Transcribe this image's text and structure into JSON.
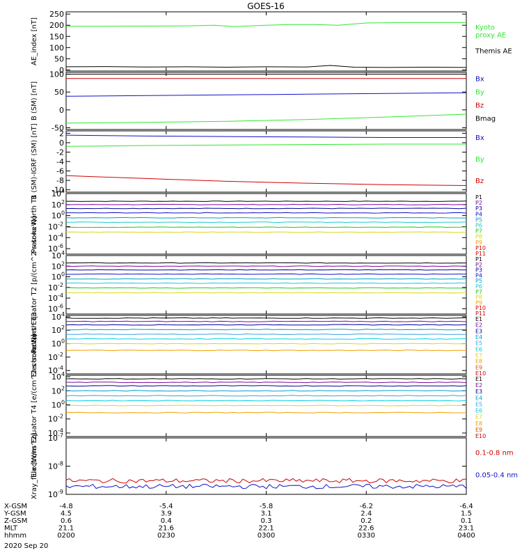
{
  "page": {
    "title": "GOES-16",
    "footer_date": "2020 Sep 20"
  },
  "colors": {
    "black": "#000000",
    "green": "#2ee82e",
    "blue": "#1010c8",
    "red": "#d00000",
    "purple": "#7a0a9a",
    "navy": "#0000a0",
    "teal": "#00a0c8",
    "cyan": "#20c8d0",
    "lime": "#20c820",
    "yellow": "#d8d820",
    "orange": "#f0a000",
    "orange_red": "#e05000",
    "magenta": "#c000c0",
    "light_blue": "#40a0e0",
    "bright_cyan": "#00d0e0"
  },
  "ephemeris": {
    "rows": [
      {
        "label": "X-GSM",
        "values": [
          "-4.8",
          "-5.4",
          "-5.8",
          "-6.2",
          "-6.4"
        ]
      },
      {
        "label": "Y-GSM",
        "values": [
          "4.5",
          "3.9",
          "3.1",
          "2.4",
          "1.5"
        ]
      },
      {
        "label": "Z-GSM",
        "values": [
          "0.6",
          "0.4",
          "0.3",
          "0.2",
          "0.1"
        ]
      },
      {
        "label": "MLT",
        "values": [
          "21.1",
          "21.6",
          "22.1",
          "22.6",
          "23.1"
        ]
      },
      {
        "label": "hhmm",
        "values": [
          "0200",
          "0230",
          "0300",
          "0330",
          "0400"
        ]
      }
    ]
  },
  "chart_data": [
    {
      "type": "line",
      "ylabel": "AE_index [nT]",
      "scale": "linear",
      "ylim": [
        -5,
        260
      ],
      "yticks": [
        0,
        50,
        100,
        150,
        200,
        250
      ],
      "ytick_labels": [
        "0",
        "50",
        "100",
        "150",
        "200",
        "250"
      ],
      "x": [
        "0200",
        "0230",
        "0300",
        "0330",
        "0400"
      ],
      "series": [
        {
          "name": "Kyoto proxy AE",
          "label_lines": [
            "Kyoto",
            "proxy AE"
          ],
          "color": "green",
          "points": [
            [
              0,
              195
            ],
            [
              0.2,
              196
            ],
            [
              0.3,
              197
            ],
            [
              0.37,
              200
            ],
            [
              0.42,
              194
            ],
            [
              0.5,
              200
            ],
            [
              0.56,
              203
            ],
            [
              0.62,
              203
            ],
            [
              0.68,
              200
            ],
            [
              0.75,
              210
            ],
            [
              0.85,
              212
            ],
            [
              1,
              212
            ]
          ]
        },
        {
          "name": "Themis AE",
          "label_lines": [
            "Themis AE"
          ],
          "color": "black",
          "points": [
            [
              0,
              14
            ],
            [
              0.1,
              15
            ],
            [
              0.2,
              13
            ],
            [
              0.3,
              14
            ],
            [
              0.4,
              12
            ],
            [
              0.5,
              14
            ],
            [
              0.6,
              13
            ],
            [
              0.66,
              20
            ],
            [
              0.72,
              12
            ],
            [
              0.8,
              11
            ],
            [
              0.9,
              12
            ],
            [
              1,
              11
            ]
          ]
        }
      ]
    },
    {
      "type": "line",
      "ylabel": "B (SM) [nT]",
      "scale": "linear",
      "ylim": [
        -55,
        105
      ],
      "yticks": [
        -50,
        0,
        50,
        100
      ],
      "ytick_labels": [
        "-50",
        "0",
        "50",
        "100"
      ],
      "x": [
        "0200",
        "0230",
        "0300",
        "0330",
        "0400"
      ],
      "series": [
        {
          "name": "Bx",
          "color": "blue",
          "points": [
            [
              0,
              38
            ],
            [
              0.2,
              40
            ],
            [
              0.4,
              42
            ],
            [
              0.6,
              44
            ],
            [
              0.8,
              46
            ],
            [
              1,
              48
            ]
          ]
        },
        {
          "name": "By",
          "color": "green",
          "points": [
            [
              0,
              -37
            ],
            [
              0.2,
              -35
            ],
            [
              0.4,
              -32
            ],
            [
              0.6,
              -27
            ],
            [
              0.8,
              -20
            ],
            [
              1,
              -12
            ]
          ]
        },
        {
          "name": "Bz",
          "color": "red",
          "points": [
            [
              0,
              88
            ],
            [
              0.5,
              88
            ],
            [
              1,
              88
            ]
          ]
        },
        {
          "name": "Bmag",
          "color": "black",
          "points": [
            [
              0,
              100
            ],
            [
              0.5,
              100
            ],
            [
              1,
              100
            ]
          ]
        }
      ]
    },
    {
      "type": "line",
      "ylabel": "B (SM)-IGRF (SM) [nT]",
      "scale": "linear",
      "ylim": [
        -10.5,
        2.5
      ],
      "yticks": [
        -10,
        -8,
        -6,
        -4,
        -2,
        0,
        2
      ],
      "ytick_labels": [
        "-10",
        "-8",
        "-6",
        "-4",
        "-2",
        "0",
        "2"
      ],
      "x": [
        "0200",
        "0230",
        "0300",
        "0330",
        "0400"
      ],
      "series": [
        {
          "name": "Bx",
          "color": "blue",
          "points": [
            [
              0,
              1.6
            ],
            [
              0.2,
              1.4
            ],
            [
              0.4,
              1.3
            ],
            [
              0.6,
              1.2
            ],
            [
              0.8,
              1.1
            ],
            [
              1,
              1.1
            ]
          ]
        },
        {
          "name": "By",
          "color": "green",
          "points": [
            [
              0,
              -0.8
            ],
            [
              0.2,
              -0.6
            ],
            [
              0.4,
              -0.5
            ],
            [
              0.6,
              -0.4
            ],
            [
              0.8,
              -0.3
            ],
            [
              1,
              -0.3
            ]
          ]
        },
        {
          "name": "Bz",
          "color": "red",
          "points": [
            [
              0,
              -7.0
            ],
            [
              0.2,
              -7.6
            ],
            [
              0.4,
              -8.2
            ],
            [
              0.6,
              -8.6
            ],
            [
              0.8,
              -8.9
            ],
            [
              1,
              -9.1
            ]
          ]
        }
      ]
    },
    {
      "type": "line",
      "ylabel": "Protons North T1",
      "scale": "log",
      "ylim": [
        -7,
        4
      ],
      "yticks": [
        -6,
        -4,
        -2,
        0,
        2,
        4
      ],
      "ytick_labels": [
        "10^-6",
        "10^-4",
        "10^-2",
        "10^0",
        "10^2",
        "10^4"
      ],
      "x": [
        "0200",
        "0230",
        "0300",
        "0330",
        "0400"
      ],
      "channels": [
        "P1",
        "P2",
        "P3",
        "P4",
        "P5",
        "P6",
        "P7",
        "P8",
        "P9",
        "P10",
        "P11"
      ],
      "channel_colors": [
        "black",
        "purple",
        "navy",
        "blue",
        "teal",
        "cyan",
        "lime",
        "yellow",
        "orange",
        "red",
        "red"
      ],
      "series": [
        {
          "name": "P1",
          "color": "black",
          "log10": 2.6
        },
        {
          "name": "P2",
          "color": "purple",
          "log10": 2.0
        },
        {
          "name": "P3",
          "color": "navy",
          "log10": 1.3
        },
        {
          "name": "P4",
          "color": "blue",
          "log10": 0.5
        },
        {
          "name": "P5",
          "color": "teal",
          "log10": -0.4
        },
        {
          "name": "P6",
          "color": "cyan",
          "log10": -1.2
        },
        {
          "name": "P7",
          "color": "lime",
          "log10": -2.1
        },
        {
          "name": "P8",
          "color": "yellow",
          "log10": -3.0
        }
      ]
    },
    {
      "type": "line",
      "ylabel": "Protons Equator T2 [p/(cm^2-s-sr-keV)]",
      "scale": "log",
      "ylim": [
        -7,
        4
      ],
      "yticks": [
        -6,
        -4,
        -2,
        0,
        2,
        4
      ],
      "ytick_labels": [
        "10^-6",
        "10^-4",
        "10^-2",
        "10^0",
        "10^2",
        "10^4"
      ],
      "x": [
        "0200",
        "0230",
        "0300",
        "0330",
        "0400"
      ],
      "channels": [
        "P1",
        "P2",
        "P3",
        "P4",
        "P5",
        "P6",
        "P7",
        "P8",
        "P9",
        "P10",
        "P11"
      ],
      "channel_colors": [
        "black",
        "purple",
        "navy",
        "blue",
        "teal",
        "cyan",
        "lime",
        "yellow",
        "orange",
        "red",
        "red"
      ],
      "series": [
        {
          "name": "P1",
          "color": "black",
          "log10": 2.6
        },
        {
          "name": "P2",
          "color": "purple",
          "log10": 2.0
        },
        {
          "name": "P3",
          "color": "navy",
          "log10": 1.3
        },
        {
          "name": "P4",
          "color": "blue",
          "log10": 0.5
        },
        {
          "name": "P5",
          "color": "teal",
          "log10": -0.4
        },
        {
          "name": "P6",
          "color": "cyan",
          "log10": -1.2
        },
        {
          "name": "P7",
          "color": "lime",
          "log10": -2.1
        },
        {
          "name": "P8",
          "color": "yellow",
          "log10": -3.0
        }
      ]
    },
    {
      "type": "line",
      "ylabel": "Electrons North T3",
      "scale": "log",
      "ylim": [
        -4.5,
        4.2
      ],
      "yticks": [
        -4,
        -2,
        0,
        2,
        4
      ],
      "ytick_labels": [
        "10^-4",
        "10^-2",
        "10^0",
        "10^2",
        "10^4"
      ],
      "x": [
        "0200",
        "0230",
        "0300",
        "0330",
        "0400"
      ],
      "channels": [
        "E1",
        "E2",
        "E3",
        "E4",
        "E5",
        "E6",
        "E7",
        "E8",
        "E9",
        "E10"
      ],
      "channel_colors": [
        "black",
        "purple",
        "navy",
        "teal",
        "light_blue",
        "bright_cyan",
        "yellow",
        "orange",
        "orange_red",
        "red"
      ],
      "series": [
        {
          "name": "E1",
          "color": "black",
          "log10": 3.8
        },
        {
          "name": "E2",
          "color": "purple",
          "log10": 3.3
        },
        {
          "name": "E3",
          "color": "navy",
          "log10": 2.8
        },
        {
          "name": "E4",
          "color": "teal",
          "log10": 2.1
        },
        {
          "name": "E5",
          "color": "light_blue",
          "log10": 1.4
        },
        {
          "name": "E6",
          "color": "bright_cyan",
          "log10": 0.7
        },
        {
          "name": "E7",
          "color": "yellow",
          "log10": 0.0
        },
        {
          "name": "E8",
          "color": "orange",
          "log10": -1.0
        }
      ]
    },
    {
      "type": "line",
      "ylabel": "Electrons Equator T4 [e/(cm^2-s-sr-keV)]",
      "scale": "log",
      "ylim": [
        -4.5,
        4.2
      ],
      "yticks": [
        -4,
        -2,
        0,
        2,
        4
      ],
      "ytick_labels": [
        "10^-4",
        "10^-2",
        "10^0",
        "10^2",
        "10^4"
      ],
      "x": [
        "0200",
        "0230",
        "0300",
        "0330",
        "0400"
      ],
      "channels": [
        "E1",
        "E2",
        "E3",
        "E4",
        "E5",
        "E6",
        "E7",
        "E8",
        "E9",
        "E10"
      ],
      "channel_colors": [
        "black",
        "purple",
        "navy",
        "teal",
        "light_blue",
        "bright_cyan",
        "yellow",
        "orange",
        "orange_red",
        "red"
      ],
      "series": [
        {
          "name": "E1",
          "color": "black",
          "log10": 3.7
        },
        {
          "name": "E2",
          "color": "purple",
          "log10": 3.2
        },
        {
          "name": "E3",
          "color": "navy",
          "log10": 2.7
        },
        {
          "name": "E4",
          "color": "teal",
          "log10": 2.0
        },
        {
          "name": "E5",
          "color": "light_blue",
          "log10": 1.3
        },
        {
          "name": "E6",
          "color": "bright_cyan",
          "log10": 0.6
        },
        {
          "name": "E7",
          "color": "yellow",
          "log10": -0.1
        },
        {
          "name": "E8",
          "color": "orange",
          "log10": -1.1
        }
      ]
    },
    {
      "type": "line",
      "ylabel": "Xray_flux [W/m^2]",
      "scale": "log",
      "ylim": [
        -9,
        -7
      ],
      "yticks": [
        -9,
        -8,
        -7
      ],
      "ytick_labels": [
        "10^-9",
        "10^-8",
        "10^-7"
      ],
      "x": [
        "0200",
        "0230",
        "0300",
        "0330",
        "0400"
      ],
      "series": [
        {
          "name": "0.1-0.8 nm",
          "color": "red",
          "log10": -8.52
        },
        {
          "name": "0.05-0.4 nm",
          "color": "blue",
          "log10": -8.72
        }
      ]
    }
  ]
}
